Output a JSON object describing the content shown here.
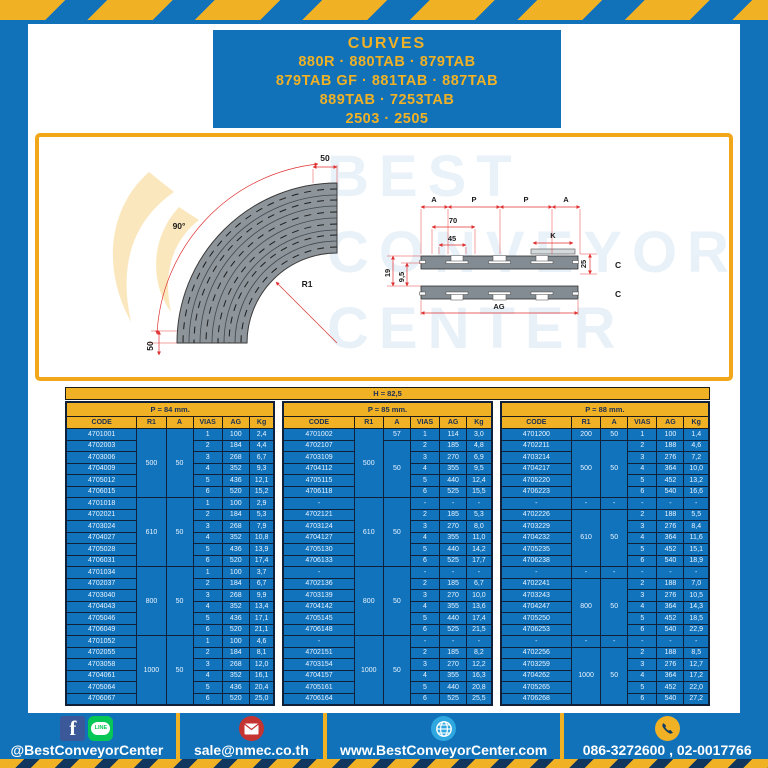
{
  "title": {
    "lines": [
      "CURVES",
      "880R · 880TAB · 879TAB",
      "879TAB GF · 881TAB · 887TAB",
      "889TAB · 7253TAB",
      "2503 · 2505"
    ]
  },
  "drawing": {
    "curve": {
      "dim_top": "50",
      "angle": "90°",
      "radius_label": "R1",
      "dim_left": "50"
    },
    "section": {
      "a_left": "A",
      "p_left": "P",
      "p_right": "P",
      "a_right": "A",
      "dim_70": "70",
      "dim_45": "45",
      "dim_k": "K",
      "dim_19": "19",
      "dim_95": "9,5",
      "dim_25": "25",
      "c_top": "C",
      "c_bottom": "C",
      "dim_ag": "AG"
    },
    "watermark_lines": [
      "BEST",
      "CONVEYOR",
      "CENTER"
    ]
  },
  "height_note": "H = 82,5",
  "columns": [
    "CODE",
    "R1",
    "A",
    "VIAS",
    "AG",
    "Kg"
  ],
  "tables": [
    {
      "title": "P = 84 mm.",
      "blocks": [
        {
          "r1": "500",
          "a": [
            [
              "50",
              6,
              0
            ]
          ],
          "rows": [
            [
              "4701001",
              "1",
              "100",
              "2,4"
            ],
            [
              "4702003",
              "2",
              "184",
              "4,4"
            ],
            [
              "4703006",
              "3",
              "268",
              "6,7"
            ],
            [
              "4704009",
              "4",
              "352",
              "9,3"
            ],
            [
              "4705012",
              "5",
              "436",
              "12,1"
            ],
            [
              "4706015",
              "6",
              "520",
              "15,2"
            ]
          ]
        },
        {
          "r1": "610",
          "a": [
            [
              "50",
              6,
              0
            ]
          ],
          "rows": [
            [
              "4701018",
              "1",
              "100",
              "2,9"
            ],
            [
              "4702021",
              "2",
              "184",
              "5,3"
            ],
            [
              "4703024",
              "3",
              "268",
              "7,9"
            ],
            [
              "4704027",
              "4",
              "352",
              "10,8"
            ],
            [
              "4705028",
              "5",
              "436",
              "13,9"
            ],
            [
              "4706031",
              "6",
              "520",
              "17,4"
            ]
          ]
        },
        {
          "r1": "800",
          "a": [
            [
              "50",
              6,
              0
            ]
          ],
          "rows": [
            [
              "4701034",
              "1",
              "100",
              "3,7"
            ],
            [
              "4702037",
              "2",
              "184",
              "6,7"
            ],
            [
              "4703040",
              "3",
              "268",
              "9,9"
            ],
            [
              "4704043",
              "4",
              "352",
              "13,4"
            ],
            [
              "4705046",
              "5",
              "436",
              "17,1"
            ],
            [
              "4706049",
              "6",
              "520",
              "21,1"
            ]
          ]
        },
        {
          "r1": "1000",
          "a": [
            [
              "50",
              6,
              0
            ]
          ],
          "rows": [
            [
              "4701052",
              "1",
              "100",
              "4,6"
            ],
            [
              "4702055",
              "2",
              "184",
              "8,1"
            ],
            [
              "4703058",
              "3",
              "268",
              "12,0"
            ],
            [
              "4704061",
              "4",
              "352",
              "16,1"
            ],
            [
              "4705064",
              "5",
              "436",
              "20,4"
            ],
            [
              "4706067",
              "6",
              "520",
              "25,0"
            ]
          ]
        }
      ]
    },
    {
      "title": "P = 85 mm.",
      "blocks": [
        {
          "r1": "500",
          "a": [
            [
              "57",
              1,
              0
            ],
            [
              "50",
              5,
              1
            ]
          ],
          "rows": [
            [
              "4701002",
              "1",
              "114",
              "3,0"
            ],
            [
              "4702107",
              "2",
              "185",
              "4,8"
            ],
            [
              "4703109",
              "3",
              "270",
              "6,9"
            ],
            [
              "4704112",
              "4",
              "355",
              "9,5"
            ],
            [
              "4705115",
              "5",
              "440",
              "12,4"
            ],
            [
              "4706118",
              "6",
              "525",
              "15,5"
            ]
          ]
        },
        {
          "r1": "610",
          "a": [
            [
              "50",
              6,
              0
            ]
          ],
          "rows": [
            [
              "-",
              "-",
              "-",
              "-"
            ],
            [
              "4702121",
              "2",
              "185",
              "5,3"
            ],
            [
              "4703124",
              "3",
              "270",
              "8,0"
            ],
            [
              "4704127",
              "4",
              "355",
              "11,0"
            ],
            [
              "4705130",
              "5",
              "440",
              "14,2"
            ],
            [
              "4706133",
              "6",
              "525",
              "17,7"
            ]
          ]
        },
        {
          "r1": "800",
          "a": [
            [
              "50",
              6,
              0
            ]
          ],
          "rows": [
            [
              "-",
              "-",
              "-",
              "-"
            ],
            [
              "4702136",
              "2",
              "185",
              "6,7"
            ],
            [
              "4703139",
              "3",
              "270",
              "10,0"
            ],
            [
              "4704142",
              "4",
              "355",
              "13,6"
            ],
            [
              "4705145",
              "5",
              "440",
              "17,4"
            ],
            [
              "4706148",
              "6",
              "525",
              "21,5"
            ]
          ]
        },
        {
          "r1": "1000",
          "a": [
            [
              "50",
              6,
              0
            ]
          ],
          "rows": [
            [
              "-",
              "-",
              "-",
              "-"
            ],
            [
              "4702151",
              "2",
              "185",
              "8,2"
            ],
            [
              "4703154",
              "3",
              "270",
              "12,2"
            ],
            [
              "4704157",
              "4",
              "355",
              "16,3"
            ],
            [
              "4705161",
              "5",
              "440",
              "20,8"
            ],
            [
              "4706164",
              "6",
              "525",
              "25,5"
            ]
          ]
        }
      ]
    },
    {
      "title": "P = 88 mm.",
      "blocks": [
        {
          "r1": "200",
          "a": [
            [
              "50",
              1,
              0
            ]
          ],
          "rows": [
            [
              "4701200",
              "1",
              "100",
              "1,4"
            ]
          ]
        },
        {
          "r1": "500",
          "a": [
            [
              "50",
              5,
              0
            ]
          ],
          "rows": [
            [
              "4702211",
              "2",
              "188",
              "4,6"
            ],
            [
              "4703214",
              "3",
              "276",
              "7,2"
            ],
            [
              "4704217",
              "4",
              "364",
              "10,0"
            ],
            [
              "4705220",
              "5",
              "452",
              "13,2"
            ],
            [
              "4706223",
              "6",
              "540",
              "16,6"
            ]
          ]
        },
        {
          "r1": "-",
          "a": [
            [
              "-",
              1,
              0
            ]
          ],
          "rows": [
            [
              "-",
              "-",
              "-",
              "-"
            ]
          ]
        },
        {
          "r1": "610",
          "a": [
            [
              "50",
              5,
              0
            ]
          ],
          "rows": [
            [
              "4702226",
              "2",
              "188",
              "5,5"
            ],
            [
              "4703229",
              "3",
              "276",
              "8,4"
            ],
            [
              "4704232",
              "4",
              "364",
              "11,6"
            ],
            [
              "4705235",
              "5",
              "452",
              "15,1"
            ],
            [
              "4706238",
              "6",
              "540",
              "18,9"
            ]
          ]
        },
        {
          "r1": "-",
          "a": [
            [
              "-",
              1,
              0
            ]
          ],
          "rows": [
            [
              "-",
              "-",
              "-",
              "-"
            ]
          ]
        },
        {
          "r1": "800",
          "a": [
            [
              "50",
              5,
              0
            ]
          ],
          "rows": [
            [
              "4702241",
              "2",
              "188",
              "7,0"
            ],
            [
              "4703243",
              "3",
              "276",
              "10,5"
            ],
            [
              "4704247",
              "4",
              "364",
              "14,3"
            ],
            [
              "4705250",
              "5",
              "452",
              "18,5"
            ],
            [
              "4706253",
              "6",
              "540",
              "22,9"
            ]
          ]
        },
        {
          "r1": "-",
          "a": [
            [
              "-",
              1,
              0
            ]
          ],
          "rows": [
            [
              "-",
              "-",
              "-",
              "-"
            ]
          ]
        },
        {
          "r1": "1000",
          "a": [
            [
              "50",
              5,
              0
            ]
          ],
          "rows": [
            [
              "4702256",
              "2",
              "188",
              "8,5"
            ],
            [
              "4703259",
              "3",
              "276",
              "12,7"
            ],
            [
              "4704262",
              "4",
              "364",
              "17,2"
            ],
            [
              "4705265",
              "5",
              "452",
              "22,0"
            ],
            [
              "4706268",
              "6",
              "540",
              "27,2"
            ]
          ]
        }
      ]
    }
  ],
  "footer": {
    "social_handle": "@BestConveyorCenter",
    "email": "sale@nmec.co.th",
    "website": "www.BestConveyorCenter.com",
    "phones": "086-3272600 , 02-0017766",
    "fb_letter": "f",
    "line_label": "LINE"
  },
  "colors": {
    "brand_blue": "#1172BA",
    "brand_yellow": "#F0B125",
    "dim_red": "#E03131"
  }
}
